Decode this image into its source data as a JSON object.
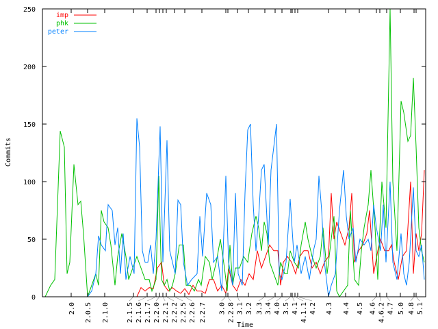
{
  "chart_data": {
    "type": "line",
    "title": "",
    "xlabel": "Time",
    "ylabel": "Commits",
    "xlim": [
      0,
      140
    ],
    "ylim": [
      0,
      250
    ],
    "yticks": [
      0,
      50,
      100,
      150,
      200,
      250
    ],
    "xticks": [
      {
        "x": 10.5,
        "label": "2.0"
      },
      {
        "x": 16.5,
        "label": "2.0.5"
      },
      {
        "x": 22.75,
        "label": "2.1.0"
      },
      {
        "x": 33.25,
        "label": "2.1.5"
      },
      {
        "x": 38.25,
        "label": "2.1.6"
      },
      {
        "x": 41.5,
        "label": "2.1.7"
      },
      {
        "x": 42.75,
        "label": "2.2.0"
      },
      {
        "x": 44,
        "label": "2.2.1"
      },
      {
        "x": 45.25,
        "label": "2.2.2"
      },
      {
        "x": 48.25,
        "label": "2.2.5"
      },
      {
        "x": 52,
        "label": "2.2.6"
      },
      {
        "x": 58.25,
        "label": "2.2.7"
      },
      {
        "x": 67,
        "label": "3.0"
      },
      {
        "x": 67.75,
        "label": "2.2.8"
      },
      {
        "x": 71.25,
        "label": "3.1"
      },
      {
        "x": 75.25,
        "label": "3.2"
      },
      {
        "x": 81.25,
        "label": "3.3"
      },
      {
        "x": 85,
        "label": "3.4"
      },
      {
        "x": 87.5,
        "label": "4.0"
      },
      {
        "x": 90.75,
        "label": "3.5"
      },
      {
        "x": 91.25,
        "label": "4.1"
      },
      {
        "x": 92.25,
        "label": "4.1.1"
      },
      {
        "x": 93.25,
        "label": "4.2"
      },
      {
        "x": 104.5,
        "label": "4.3"
      },
      {
        "x": 110.75,
        "label": "4.4"
      },
      {
        "x": 115.75,
        "label": "4.5"
      },
      {
        "x": 122,
        "label": "4.6"
      },
      {
        "x": 123.25,
        "label": "4.6.2"
      },
      {
        "x": 125.75,
        "label": "4.7"
      },
      {
        "x": 130.75,
        "label": "5.0"
      },
      {
        "x": 135.75,
        "label": "4.8"
      },
      {
        "x": 136.5,
        "label": "5.1"
      }
    ],
    "legend_position": "top-left",
    "series": [
      {
        "name": "imp",
        "color": "#ff0000",
        "points": [
          [
            34.5,
            0
          ],
          [
            36,
            8
          ],
          [
            37.5,
            5
          ],
          [
            39,
            8
          ],
          [
            40.5,
            7
          ],
          [
            42,
            25
          ],
          [
            43.5,
            30
          ],
          [
            44.5,
            10
          ],
          [
            46,
            5
          ],
          [
            47.5,
            8
          ],
          [
            49,
            5
          ],
          [
            50.5,
            3
          ],
          [
            52,
            7
          ],
          [
            53.5,
            2
          ],
          [
            55,
            10
          ],
          [
            56.5,
            5
          ],
          [
            58,
            5
          ],
          [
            59.5,
            3
          ],
          [
            61,
            15
          ],
          [
            62.5,
            15
          ],
          [
            64,
            5
          ],
          [
            65.5,
            10
          ],
          [
            67,
            3
          ],
          [
            68,
            25
          ],
          [
            69.5,
            10
          ],
          [
            71,
            5
          ],
          [
            72.5,
            15
          ],
          [
            74,
            10
          ],
          [
            75.5,
            20
          ],
          [
            77,
            15
          ],
          [
            78.5,
            40
          ],
          [
            80,
            25
          ],
          [
            81.5,
            35
          ],
          [
            83,
            45
          ],
          [
            84.5,
            40
          ],
          [
            86,
            40
          ],
          [
            87,
            10
          ],
          [
            88,
            30
          ],
          [
            89.5,
            35
          ],
          [
            91,
            30
          ],
          [
            92.5,
            20
          ],
          [
            94,
            35
          ],
          [
            95.5,
            40
          ],
          [
            97,
            40
          ],
          [
            98.5,
            25
          ],
          [
            100,
            30
          ],
          [
            101.5,
            20
          ],
          [
            103,
            30
          ],
          [
            104.5,
            35
          ],
          [
            105.5,
            90
          ],
          [
            106.5,
            50
          ],
          [
            107.5,
            65
          ],
          [
            109,
            55
          ],
          [
            110.5,
            45
          ],
          [
            112,
            60
          ],
          [
            113,
            90
          ],
          [
            114,
            30
          ],
          [
            115.5,
            40
          ],
          [
            117,
            45
          ],
          [
            118.5,
            55
          ],
          [
            119.5,
            75
          ],
          [
            121,
            20
          ],
          [
            122.5,
            40
          ],
          [
            123.5,
            50
          ],
          [
            125,
            40
          ],
          [
            126.5,
            40
          ],
          [
            127.5,
            45
          ],
          [
            128.5,
            30
          ],
          [
            130,
            15
          ],
          [
            131.5,
            35
          ],
          [
            133,
            40
          ],
          [
            134.5,
            100
          ],
          [
            135.5,
            20
          ],
          [
            136.5,
            55
          ],
          [
            137.5,
            40
          ],
          [
            138.5,
            55
          ],
          [
            139.5,
            110
          ]
        ]
      },
      {
        "name": "phk",
        "color": "#00c000",
        "points": [
          [
            1,
            0
          ],
          [
            3,
            10
          ],
          [
            4.5,
            15
          ],
          [
            6.5,
            144
          ],
          [
            8,
            130
          ],
          [
            9,
            20
          ],
          [
            10,
            30
          ],
          [
            11.5,
            115
          ],
          [
            13,
            80
          ],
          [
            14,
            83
          ],
          [
            15,
            55
          ],
          [
            16.5,
            0
          ],
          [
            18,
            10
          ],
          [
            19.5,
            20
          ],
          [
            20.5,
            10
          ],
          [
            21.5,
            75
          ],
          [
            22.5,
            65
          ],
          [
            24,
            60
          ],
          [
            25,
            45
          ],
          [
            26.5,
            10
          ],
          [
            27.5,
            35
          ],
          [
            29,
            55
          ],
          [
            30.5,
            35
          ],
          [
            31.5,
            15
          ],
          [
            33,
            25
          ],
          [
            34.5,
            35
          ],
          [
            36,
            25
          ],
          [
            37.5,
            15
          ],
          [
            39,
            15
          ],
          [
            40,
            5
          ],
          [
            41.5,
            15
          ],
          [
            42.5,
            105
          ],
          [
            43.5,
            15
          ],
          [
            44.5,
            10
          ],
          [
            45.5,
            15
          ],
          [
            46.5,
            5
          ],
          [
            47.5,
            10
          ],
          [
            48.5,
            20
          ],
          [
            50,
            45
          ],
          [
            51.5,
            45
          ],
          [
            52.5,
            10
          ],
          [
            54,
            10
          ],
          [
            55.5,
            5
          ],
          [
            57,
            15
          ],
          [
            58,
            10
          ],
          [
            59.5,
            35
          ],
          [
            61,
            30
          ],
          [
            62,
            15
          ],
          [
            63.5,
            30
          ],
          [
            65,
            50
          ],
          [
            66.5,
            25
          ],
          [
            67.5,
            5
          ],
          [
            68.5,
            45
          ],
          [
            69.5,
            10
          ],
          [
            70.5,
            25
          ],
          [
            72,
            25
          ],
          [
            73.5,
            35
          ],
          [
            75,
            30
          ],
          [
            76.5,
            55
          ],
          [
            78,
            70
          ],
          [
            79,
            60
          ],
          [
            80,
            40
          ],
          [
            81,
            65
          ],
          [
            82,
            55
          ],
          [
            83,
            30
          ],
          [
            84.5,
            20
          ],
          [
            86,
            10
          ],
          [
            87,
            30
          ],
          [
            88.5,
            20
          ],
          [
            89.5,
            20
          ],
          [
            90.5,
            40
          ],
          [
            92,
            30
          ],
          [
            93.5,
            25
          ],
          [
            94.5,
            45
          ],
          [
            96,
            65
          ],
          [
            97,
            50
          ],
          [
            98.5,
            35
          ],
          [
            100,
            25
          ],
          [
            101.5,
            35
          ],
          [
            102.5,
            60
          ],
          [
            104,
            20
          ],
          [
            105.5,
            50
          ],
          [
            106.5,
            70
          ],
          [
            107.5,
            5
          ],
          [
            108.5,
            0
          ],
          [
            110,
            5
          ],
          [
            111.5,
            10
          ],
          [
            112.5,
            75
          ],
          [
            114,
            15
          ],
          [
            115.5,
            10
          ],
          [
            116.5,
            40
          ],
          [
            117.5,
            60
          ],
          [
            119,
            80
          ],
          [
            120,
            110
          ],
          [
            121.5,
            60
          ],
          [
            122.5,
            15
          ],
          [
            124,
            100
          ],
          [
            125.5,
            60
          ],
          [
            127,
            250
          ],
          [
            128,
            100
          ],
          [
            129.5,
            40
          ],
          [
            131,
            170
          ],
          [
            132,
            160
          ],
          [
            133.5,
            135
          ],
          [
            134.5,
            140
          ],
          [
            135.5,
            190
          ],
          [
            136.5,
            130
          ],
          [
            137.5,
            60
          ],
          [
            138.5,
            40
          ],
          [
            139.5,
            30
          ]
        ]
      },
      {
        "name": "peter",
        "color": "#0080ff",
        "points": [
          [
            16.5,
            0
          ],
          [
            18,
            5
          ],
          [
            19.5,
            20
          ],
          [
            20.5,
            53
          ],
          [
            21.5,
            45
          ],
          [
            23,
            40
          ],
          [
            24,
            80
          ],
          [
            25.5,
            75
          ],
          [
            26.5,
            45
          ],
          [
            27.5,
            60
          ],
          [
            28.5,
            20
          ],
          [
            29.5,
            55
          ],
          [
            30.5,
            15
          ],
          [
            32,
            35
          ],
          [
            33.5,
            20
          ],
          [
            34.5,
            155
          ],
          [
            35.5,
            130
          ],
          [
            36.5,
            40
          ],
          [
            37.5,
            30
          ],
          [
            38.5,
            30
          ],
          [
            39.5,
            45
          ],
          [
            40.5,
            20
          ],
          [
            41.5,
            50
          ],
          [
            43,
            148
          ],
          [
            44,
            30
          ],
          [
            45.5,
            136
          ],
          [
            46.5,
            40
          ],
          [
            47.5,
            30
          ],
          [
            48.5,
            20
          ],
          [
            49.5,
            84
          ],
          [
            50.5,
            80
          ],
          [
            51.5,
            30
          ],
          [
            53,
            10
          ],
          [
            54.5,
            15
          ],
          [
            56.5,
            20
          ],
          [
            57.5,
            70
          ],
          [
            58.5,
            35
          ],
          [
            60,
            90
          ],
          [
            61.5,
            80
          ],
          [
            62.5,
            30
          ],
          [
            64,
            35
          ],
          [
            65.5,
            5
          ],
          [
            67,
            105
          ],
          [
            68,
            30
          ],
          [
            69.5,
            10
          ],
          [
            70.5,
            90
          ],
          [
            71.5,
            20
          ],
          [
            73,
            10
          ],
          [
            74,
            90
          ],
          [
            75,
            145
          ],
          [
            76,
            150
          ],
          [
            77,
            80
          ],
          [
            78,
            40
          ],
          [
            79,
            70
          ],
          [
            80,
            110
          ],
          [
            81,
            115
          ],
          [
            82.5,
            45
          ],
          [
            83.5,
            110
          ],
          [
            84.5,
            130
          ],
          [
            85.5,
            150
          ],
          [
            86.5,
            20
          ],
          [
            87.5,
            15
          ],
          [
            89,
            30
          ],
          [
            90.5,
            85
          ],
          [
            92,
            30
          ],
          [
            93,
            45
          ],
          [
            94.5,
            20
          ],
          [
            96,
            35
          ],
          [
            97.5,
            15
          ],
          [
            99,
            40
          ],
          [
            100,
            50
          ],
          [
            101,
            105
          ],
          [
            102,
            75
          ],
          [
            103,
            30
          ],
          [
            104.5,
            0
          ],
          [
            105.5,
            10
          ],
          [
            107,
            20
          ],
          [
            108.5,
            75
          ],
          [
            110,
            110
          ],
          [
            111,
            70
          ],
          [
            112,
            50
          ],
          [
            113.5,
            60
          ],
          [
            114.5,
            30
          ],
          [
            116,
            50
          ],
          [
            117.5,
            45
          ],
          [
            119,
            50
          ],
          [
            120,
            40
          ],
          [
            121,
            80
          ],
          [
            122,
            60
          ],
          [
            123.5,
            40
          ],
          [
            124.5,
            80
          ],
          [
            125.5,
            30
          ],
          [
            127,
            100
          ],
          [
            128,
            30
          ],
          [
            129.5,
            15
          ],
          [
            131,
            55
          ],
          [
            132,
            20
          ],
          [
            133,
            10
          ],
          [
            134,
            30
          ],
          [
            135.5,
            95
          ],
          [
            136.5,
            40
          ],
          [
            137.5,
            35
          ],
          [
            138.5,
            45
          ],
          [
            139.5,
            15
          ]
        ]
      }
    ]
  }
}
